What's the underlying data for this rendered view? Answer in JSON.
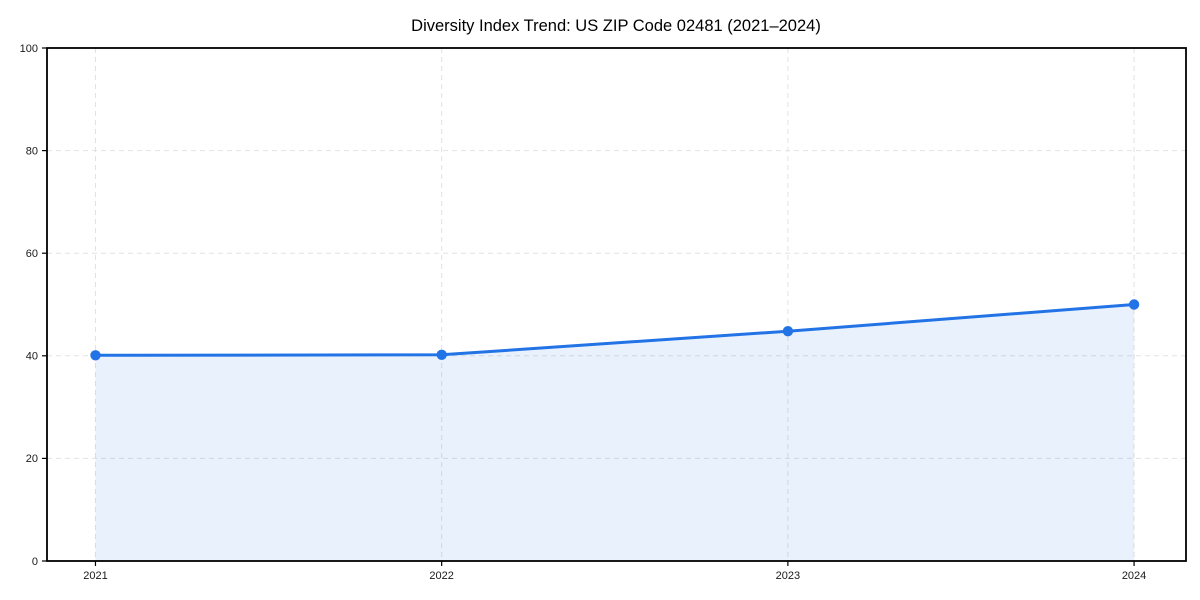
{
  "chart_data": {
    "type": "area",
    "title": "Diversity Index Trend: US ZIP Code 02481 (2021–2024)",
    "x": [
      2021,
      2022,
      2023,
      2024
    ],
    "xticklabels": [
      "2021",
      "2022",
      "2023",
      "2024"
    ],
    "series": [
      {
        "name": "Diversity Index",
        "values": [
          40.1,
          40.2,
          44.8,
          50.0
        ]
      }
    ],
    "xlabel": "",
    "ylabel": "",
    "ylim": [
      0,
      100
    ],
    "yticks": [
      0,
      20,
      40,
      60,
      80,
      100
    ],
    "grid": true,
    "grid_style": "dashed",
    "legend_position": "none",
    "colors": {
      "line": "#2273e6",
      "marker": "#2273e6",
      "fill": "rgba(34,115,230,0.10)",
      "grid": "#e2e2e2",
      "axis": "#000000",
      "tick_text": "#1a1a1a",
      "background": "#ffffff"
    }
  }
}
